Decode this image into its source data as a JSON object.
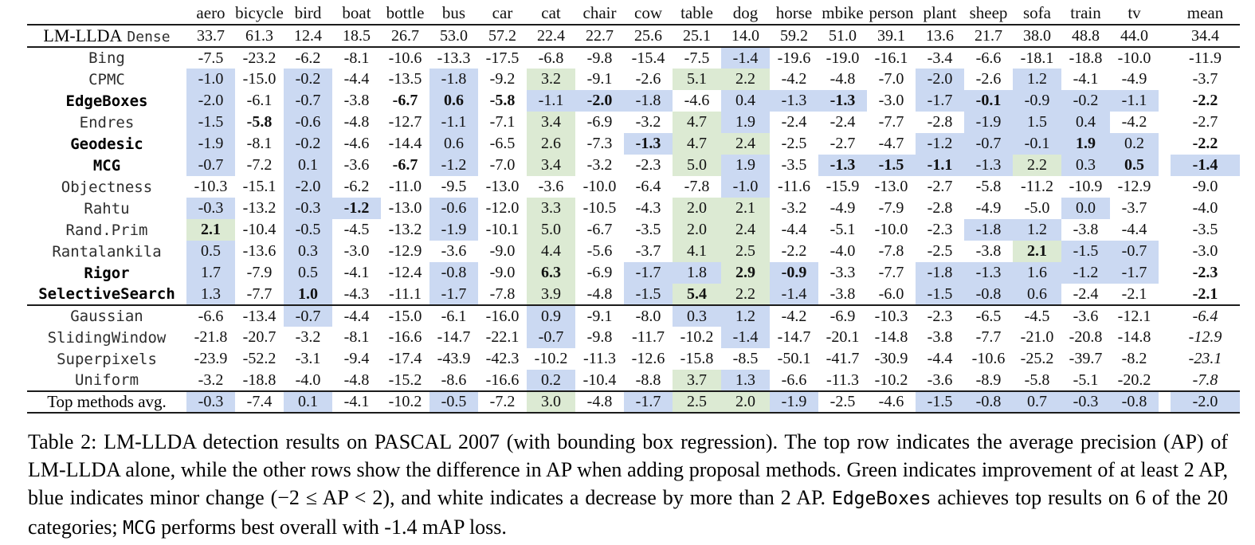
{
  "colors": {
    "highlight_blue": "#cbd9f2",
    "highlight_green": "#dcead3",
    "rule": "#1c1c1c"
  },
  "table": {
    "columns": [
      "aero",
      "bicycle",
      "bird",
      "boat",
      "bottle",
      "bus",
      "car",
      "cat",
      "chair",
      "cow",
      "table",
      "dog",
      "horse",
      "mbike",
      "person",
      "plant",
      "sheep",
      "sofa",
      "train",
      "tv",
      "mean"
    ],
    "baseline_row": {
      "label_main": "LM-LLDA",
      "label_sub": "Dense",
      "values": [
        "33.7",
        "61.3",
        "12.4",
        "18.5",
        "26.7",
        "53.0",
        "57.2",
        "22.4",
        "22.7",
        "25.6",
        "25.1",
        "14.0",
        "59.2",
        "51.0",
        "39.1",
        "13.6",
        "21.7",
        "38.0",
        "48.8",
        "44.0",
        "34.4"
      ]
    },
    "rows": [
      {
        "label": "Bing",
        "bold": false,
        "rule_below": false,
        "values": [
          "-7.5",
          "-23.2",
          "-6.2",
          "-8.1",
          "-10.6",
          "-13.3",
          "-17.5",
          "-6.8",
          "-9.8",
          "-15.4",
          "-7.5",
          "-1.4",
          "-19.6",
          "-19.0",
          "-16.1",
          "-3.4",
          "-6.6",
          "-18.1",
          "-18.8",
          "-10.0",
          "-11.9"
        ],
        "colors": "wwwwwwwwwwwbwwwwwwwww",
        "emph": ""
      },
      {
        "label": "CPMC",
        "bold": false,
        "rule_below": false,
        "values": [
          "-1.0",
          "-15.0",
          "-0.2",
          "-4.4",
          "-13.5",
          "-1.8",
          "-9.2",
          "3.2",
          "-9.1",
          "-2.6",
          "5.1",
          "2.2",
          "-4.2",
          "-4.8",
          "-7.0",
          "-2.0",
          "-2.6",
          "1.2",
          "-4.1",
          "-4.9",
          "-3.7"
        ],
        "colors": "bwbwwbwgwwggwwwbwbwww",
        "emph": ""
      },
      {
        "label": "EdgeBoxes",
        "bold": true,
        "rule_below": false,
        "values": [
          "-2.0",
          "-6.1",
          "-0.7",
          "-3.8",
          "-6.7",
          "0.6",
          "-5.8",
          "-1.1",
          "-2.0",
          "-1.8",
          "-4.6",
          "0.4",
          "-1.3",
          "-1.3",
          "-3.0",
          "-1.7",
          "-0.1",
          "-0.9",
          "-0.2",
          "-1.1",
          "-2.2"
        ],
        "colors": "bwbwwbwbbbwbbbwbbbbbw",
        "emph": "....bbb.b....b..b...b"
      },
      {
        "label": "Endres",
        "bold": false,
        "rule_below": false,
        "values": [
          "-1.5",
          "-5.8",
          "-0.6",
          "-4.8",
          "-12.7",
          "-1.1",
          "-7.1",
          "3.4",
          "-6.9",
          "-3.2",
          "4.7",
          "1.9",
          "-2.4",
          "-2.4",
          "-7.7",
          "-2.8",
          "-1.9",
          "1.5",
          "0.4",
          "-4.2",
          "-2.7"
        ],
        "colors": "bwbwwbwgwwgbwwwwbbbww",
        "emph": ".b..................."
      },
      {
        "label": "Geodesic",
        "bold": true,
        "rule_below": false,
        "values": [
          "-1.9",
          "-8.1",
          "-0.2",
          "-4.6",
          "-14.4",
          "0.6",
          "-6.5",
          "2.6",
          "-7.3",
          "-1.3",
          "4.7",
          "2.4",
          "-2.5",
          "-2.7",
          "-4.7",
          "-1.2",
          "-0.7",
          "-0.1",
          "1.9",
          "0.2",
          "-2.2"
        ],
        "colors": "bwbwwbwgwbggwwwbbbbbw",
        "emph": ".........b........b.b"
      },
      {
        "label": "MCG",
        "bold": true,
        "rule_below": false,
        "values": [
          "-0.7",
          "-7.2",
          "0.1",
          "-3.6",
          "-6.7",
          "-1.2",
          "-7.0",
          "3.4",
          "-3.2",
          "-2.3",
          "5.0",
          "1.9",
          "-3.5",
          "-1.3",
          "-1.5",
          "-1.1",
          "-1.3",
          "2.2",
          "0.3",
          "0.5",
          "-1.4"
        ],
        "colors": "bwbwwbwgwwgbwbbbbgbbb",
        "emph": "....b........bbb...bb"
      },
      {
        "label": "Objectness",
        "bold": false,
        "rule_below": false,
        "values": [
          "-10.3",
          "-15.1",
          "-2.0",
          "-6.2",
          "-11.0",
          "-9.5",
          "-13.0",
          "-3.6",
          "-10.0",
          "-6.4",
          "-7.8",
          "-1.0",
          "-11.6",
          "-15.9",
          "-13.0",
          "-2.7",
          "-5.8",
          "-11.2",
          "-10.9",
          "-12.9",
          "-9.0"
        ],
        "colors": "wwbwwwwwwwwbwwwwwwwww",
        "emph": ""
      },
      {
        "label": "Rahtu",
        "bold": false,
        "rule_below": false,
        "values": [
          "-0.3",
          "-13.2",
          "-0.3",
          "-1.2",
          "-13.0",
          "-0.6",
          "-12.0",
          "3.3",
          "-10.5",
          "-4.3",
          "2.0",
          "2.1",
          "-3.2",
          "-4.9",
          "-7.9",
          "-2.8",
          "-4.9",
          "-5.0",
          "0.0",
          "-3.7",
          "-4.0"
        ],
        "colors": "bwbbwbwgwwggwwwwwwbww",
        "emph": "...b................."
      },
      {
        "label": "Rand.Prim",
        "bold": false,
        "rule_below": false,
        "values": [
          "2.1",
          "-10.4",
          "-0.5",
          "-4.5",
          "-13.2",
          "-1.9",
          "-10.1",
          "5.0",
          "-6.7",
          "-3.5",
          "2.0",
          "2.4",
          "-4.4",
          "-5.1",
          "-10.0",
          "-2.3",
          "-1.8",
          "1.2",
          "-3.8",
          "-4.4",
          "-3.5"
        ],
        "colors": "gwbwwbwgwwggwwwwbbwww",
        "emph": "b...................."
      },
      {
        "label": "Rantalankila",
        "bold": false,
        "rule_below": false,
        "values": [
          "0.5",
          "-13.6",
          "0.3",
          "-3.0",
          "-12.9",
          "-3.6",
          "-9.0",
          "4.4",
          "-5.6",
          "-3.7",
          "4.1",
          "2.5",
          "-2.2",
          "-4.0",
          "-7.8",
          "-2.5",
          "-3.8",
          "2.1",
          "-1.5",
          "-0.7",
          "-3.0"
        ],
        "colors": "bwbwwwwgwwggwwwwwgbbw",
        "emph": ".................b..."
      },
      {
        "label": "Rigor",
        "bold": true,
        "rule_below": false,
        "values": [
          "1.7",
          "-7.9",
          "0.5",
          "-4.1",
          "-12.4",
          "-0.8",
          "-9.0",
          "6.3",
          "-6.9",
          "-1.7",
          "1.8",
          "2.9",
          "-0.9",
          "-3.3",
          "-7.7",
          "-1.8",
          "-1.3",
          "1.6",
          "-1.2",
          "-1.7",
          "-2.3"
        ],
        "colors": "bwbwwbwgwbbgbwwbbbbbw",
        "emph": ".......b...bb.......b"
      },
      {
        "label": "SelectiveSearch",
        "bold": true,
        "rule_below": true,
        "values": [
          "1.3",
          "-7.7",
          "1.0",
          "-4.3",
          "-11.1",
          "-1.7",
          "-7.8",
          "3.9",
          "-4.8",
          "-1.5",
          "5.4",
          "2.2",
          "-1.4",
          "-3.8",
          "-6.0",
          "-1.5",
          "-0.8",
          "0.6",
          "-2.4",
          "-2.1",
          "-2.1"
        ],
        "colors": "bwbwwbwgwbggbwwbbbwww",
        "emph": "..b.......b.........b"
      },
      {
        "label": "Gaussian",
        "bold": false,
        "rule_below": false,
        "values": [
          "-6.6",
          "-13.4",
          "-0.7",
          "-4.4",
          "-15.0",
          "-6.1",
          "-16.0",
          "0.9",
          "-9.1",
          "-8.0",
          "0.3",
          "1.2",
          "-4.2",
          "-6.9",
          "-10.3",
          "-2.3",
          "-6.5",
          "-4.5",
          "-3.6",
          "-12.1",
          "-6.4"
        ],
        "colors": "wwbwwwwbwwbbwwwwwwwww",
        "emph": "....................i"
      },
      {
        "label": "SlidingWindow",
        "bold": false,
        "rule_below": false,
        "values": [
          "-21.8",
          "-20.7",
          "-3.2",
          "-8.1",
          "-16.6",
          "-14.7",
          "-22.1",
          "-0.7",
          "-9.8",
          "-11.7",
          "-10.2",
          "-1.4",
          "-14.7",
          "-20.1",
          "-14.8",
          "-3.8",
          "-7.7",
          "-21.0",
          "-20.8",
          "-14.8",
          "-12.9"
        ],
        "colors": "wwwwwwwbwwwbwwwwwwwww",
        "emph": "....................i"
      },
      {
        "label": "Superpixels",
        "bold": false,
        "rule_below": false,
        "values": [
          "-23.9",
          "-52.2",
          "-3.1",
          "-9.4",
          "-17.4",
          "-43.9",
          "-42.3",
          "-10.2",
          "-11.3",
          "-12.6",
          "-15.8",
          "-8.5",
          "-50.1",
          "-41.7",
          "-30.9",
          "-4.4",
          "-10.6",
          "-25.2",
          "-39.7",
          "-8.2",
          "-23.1"
        ],
        "colors": "wwwwwwwwwwwwwwwwwwwww",
        "emph": "....................i"
      },
      {
        "label": "Uniform",
        "bold": false,
        "rule_below": true,
        "values": [
          "-3.2",
          "-18.8",
          "-4.0",
          "-4.8",
          "-15.2",
          "-8.6",
          "-16.6",
          "0.2",
          "-10.4",
          "-8.8",
          "3.7",
          "1.3",
          "-6.6",
          "-11.3",
          "-10.2",
          "-3.6",
          "-8.9",
          "-5.8",
          "-5.1",
          "-20.2",
          "-7.8"
        ],
        "colors": "wwwwwwwbwwgbwwwwwwwww",
        "emph": "....................i"
      }
    ],
    "footer_row": {
      "label": "Top methods avg.",
      "values": [
        "-0.3",
        "-7.4",
        "0.1",
        "-4.1",
        "-10.2",
        "-0.5",
        "-7.2",
        "3.0",
        "-4.8",
        "-1.7",
        "2.5",
        "2.0",
        "-1.9",
        "-2.5",
        "-4.6",
        "-1.5",
        "-0.8",
        "0.7",
        "-0.3",
        "-0.8",
        "-2.0"
      ],
      "colors": "bwbwwbwgwbggbwwbbbbbb",
      "emph": ""
    }
  },
  "caption": {
    "parts": [
      {
        "text": "Table 2: LM-LLDA detection results on PASCAL 2007 (with bounding box regression). The top row indicates the average precision (AP) of LM-LLDA alone, while the other rows show the difference in AP when adding proposal methods. Green indicates improvement of at least 2 AP, blue indicates minor change (−2 ≤ AP < 2), and white indicates a decrease by more than 2 AP. ",
        "mono": false
      },
      {
        "text": "EdgeBoxes",
        "mono": true
      },
      {
        "text": " achieves top results on 6 of the 20 categories; ",
        "mono": false
      },
      {
        "text": "MCG",
        "mono": true
      },
      {
        "text": " performs best overall with -1.4 mAP loss.",
        "mono": false
      }
    ]
  }
}
